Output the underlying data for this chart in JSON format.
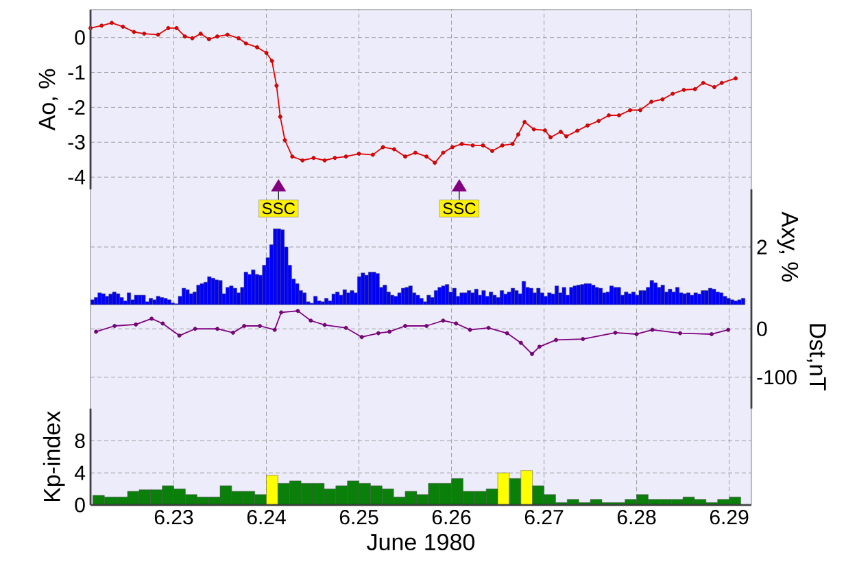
{
  "chart_data": [
    {
      "type": "line",
      "ylabel": "Ao, %",
      "xlim": [
        6.221,
        6.2924
      ],
      "ylim": [
        -4.35,
        0.8
      ],
      "xticks": [
        6.23,
        6.24,
        6.25,
        6.26,
        6.27,
        6.28,
        6.29
      ],
      "yticks": [
        0,
        -1,
        -2,
        -3,
        -4
      ],
      "grid": true,
      "marker": "circle",
      "tick_labels": "y",
      "x": [
        6.221,
        6.2222,
        6.2233,
        6.2245,
        6.2257,
        6.2268,
        6.2283,
        6.2294,
        6.2303,
        6.2312,
        6.232,
        6.2329,
        6.2338,
        6.2347,
        6.2358,
        6.237,
        6.2378,
        6.239,
        6.24,
        6.2406,
        6.2411,
        6.2415,
        6.242,
        6.2428,
        6.2439,
        6.2451,
        6.2463,
        6.2474,
        6.2486,
        6.25,
        6.2515,
        6.2526,
        6.2538,
        6.255,
        6.2561,
        6.2573,
        6.2582,
        6.2591,
        6.2601,
        6.2611,
        6.2623,
        6.2634,
        6.2644,
        6.2655,
        6.2666,
        6.2672,
        6.2679,
        6.2689,
        6.2701,
        6.2707,
        6.2718,
        6.2724,
        6.2736,
        6.2747,
        6.2759,
        6.277,
        6.2781,
        6.2793,
        6.2804,
        6.2816,
        6.2828,
        6.2839,
        6.2851,
        6.2863,
        6.2872,
        6.2884,
        6.2892,
        6.2907
      ],
      "series": [
        {
          "color": "#e60000",
          "values": [
            0.27,
            0.34,
            0.42,
            0.31,
            0.16,
            0.11,
            0.08,
            0.27,
            0.27,
            0.03,
            -0.02,
            0.11,
            -0.05,
            0.03,
            0.08,
            -0.02,
            -0.17,
            -0.28,
            -0.44,
            -0.67,
            -1.38,
            -2.27,
            -2.94,
            -3.41,
            -3.52,
            -3.45,
            -3.52,
            -3.45,
            -3.41,
            -3.33,
            -3.36,
            -3.14,
            -3.2,
            -3.41,
            -3.3,
            -3.41,
            -3.59,
            -3.3,
            -3.14,
            -3.05,
            -3.09,
            -3.09,
            -3.25,
            -3.09,
            -3.05,
            -2.78,
            -2.42,
            -2.63,
            -2.66,
            -2.86,
            -2.7,
            -2.83,
            -2.67,
            -2.52,
            -2.39,
            -2.23,
            -2.23,
            -2.08,
            -2.08,
            -1.84,
            -1.77,
            -1.61,
            -1.5,
            -1.48,
            -1.3,
            -1.42,
            -1.3,
            -1.17
          ]
        }
      ],
      "annotations": [
        "SSC",
        "SSC"
      ]
    },
    {
      "type": "bar",
      "ylabel": "Axy, %",
      "xlim": [
        6.221,
        6.2924
      ],
      "ylim": [
        0,
        4
      ],
      "xticks": [
        6.23,
        6.24,
        6.25,
        6.26,
        6.27,
        6.28,
        6.29
      ],
      "yticks": [
        2
      ],
      "grid": true,
      "tick_labels": "y",
      "color": "#0000ff",
      "x": [
        6.2212,
        6.2216,
        6.22199,
        6.22239,
        6.22278,
        6.22318,
        6.22357,
        6.22397,
        6.22436,
        6.22476,
        6.22515,
        6.22555,
        6.22594,
        6.22634,
        6.22673,
        6.22713,
        6.22752,
        6.22792,
        6.22831,
        6.22871,
        6.2291,
        6.2295,
        6.22989,
        6.23029,
        6.23068,
        6.23108,
        6.23147,
        6.23187,
        6.23226,
        6.23266,
        6.23305,
        6.23345,
        6.23384,
        6.23424,
        6.23463,
        6.23503,
        6.23542,
        6.23582,
        6.23621,
        6.23661,
        6.237,
        6.2374,
        6.23779,
        6.23819,
        6.23858,
        6.23898,
        6.23937,
        6.23977,
        6.24016,
        6.24056,
        6.24095,
        6.24135,
        6.24174,
        6.24214,
        6.24253,
        6.24293,
        6.24332,
        6.24372,
        6.24411,
        6.24451,
        6.2449,
        6.2453,
        6.24569,
        6.24609,
        6.24648,
        6.24688,
        6.24727,
        6.24767,
        6.24806,
        6.24846,
        6.24885,
        6.24925,
        6.24964,
        6.25004,
        6.25043,
        6.25083,
        6.25122,
        6.25162,
        6.25201,
        6.25241,
        6.2528,
        6.2532,
        6.25359,
        6.25399,
        6.25438,
        6.25478,
        6.25517,
        6.25557,
        6.25596,
        6.25636,
        6.25675,
        6.25715,
        6.25754,
        6.25794,
        6.25833,
        6.25873,
        6.25912,
        6.25952,
        6.25991,
        6.26031,
        6.2607,
        6.2611,
        6.26149,
        6.26189,
        6.26228,
        6.26268,
        6.26307,
        6.26347,
        6.26386,
        6.26426,
        6.26465,
        6.26505,
        6.26544,
        6.26584,
        6.26623,
        6.26663,
        6.26702,
        6.26742,
        6.26781,
        6.26821,
        6.2686,
        6.269,
        6.26939,
        6.26979,
        6.27018,
        6.27058,
        6.27097,
        6.27137,
        6.27176,
        6.27216,
        6.27255,
        6.27295,
        6.27334,
        6.27374,
        6.27413,
        6.27453,
        6.27492,
        6.27532,
        6.27571,
        6.27611,
        6.2765,
        6.2769,
        6.27729,
        6.27769,
        6.27808,
        6.27848,
        6.27887,
        6.27927,
        6.27966,
        6.28006,
        6.28045,
        6.28085,
        6.28124,
        6.28164,
        6.28203,
        6.28243,
        6.28282,
        6.28322,
        6.28361,
        6.28401,
        6.2844,
        6.2848,
        6.28519,
        6.28559,
        6.28598,
        6.28638,
        6.28677,
        6.28717,
        6.28756,
        6.28796,
        6.28835,
        6.28875,
        6.28914,
        6.28954,
        6.28993,
        6.29033,
        6.29072,
        6.29112,
        6.29151
      ],
      "values": [
        0.17,
        0.25,
        0.41,
        0.38,
        0.29,
        0.37,
        0.44,
        0.38,
        0.25,
        0.13,
        0.41,
        0.17,
        0.33,
        0.33,
        0.33,
        0.1,
        0.22,
        0.17,
        0.29,
        0.25,
        0.22,
        0.17,
        0.06,
        0.03,
        0.29,
        0.57,
        0.52,
        0.38,
        0.44,
        0.68,
        0.73,
        0.78,
        0.97,
        0.92,
        0.86,
        0.84,
        0.38,
        0.6,
        0.65,
        0.57,
        0.41,
        0.6,
        1.13,
        1.05,
        1.21,
        1.05,
        1.02,
        1.37,
        1.63,
        2.08,
        2.63,
        2.63,
        2.6,
        2.0,
        1.37,
        0.89,
        0.73,
        0.49,
        0.41,
        0.1,
        0.05,
        0.29,
        0.13,
        0.1,
        0.22,
        0.13,
        0.37,
        0.44,
        0.33,
        0.52,
        0.41,
        0.49,
        0.41,
        0.97,
        1.1,
        1.02,
        1.13,
        1.13,
        1.08,
        0.6,
        0.68,
        0.44,
        0.33,
        0.29,
        0.41,
        0.57,
        0.6,
        0.65,
        0.41,
        0.33,
        0.22,
        0.1,
        0.33,
        0.25,
        0.49,
        0.6,
        0.65,
        0.7,
        0.44,
        0.57,
        0.29,
        0.41,
        0.41,
        0.49,
        0.41,
        0.54,
        0.33,
        0.49,
        0.29,
        0.44,
        0.33,
        0.25,
        0.49,
        0.37,
        0.44,
        0.57,
        0.49,
        0.38,
        0.81,
        0.6,
        0.57,
        0.41,
        0.57,
        0.41,
        0.29,
        0.41,
        0.37,
        0.65,
        0.41,
        0.6,
        0.33,
        0.6,
        0.65,
        0.68,
        0.7,
        0.73,
        0.73,
        0.68,
        0.6,
        0.57,
        0.41,
        0.44,
        0.65,
        0.6,
        0.6,
        0.33,
        0.44,
        0.38,
        0.44,
        0.33,
        0.49,
        0.49,
        0.6,
        0.84,
        0.76,
        0.6,
        0.68,
        0.44,
        0.54,
        0.44,
        0.6,
        0.41,
        0.38,
        0.41,
        0.33,
        0.41,
        0.37,
        0.49,
        0.49,
        0.57,
        0.54,
        0.44,
        0.41,
        0.29,
        0.22,
        0.17,
        0.13,
        0.17,
        0.22
      ]
    },
    {
      "type": "line",
      "ylabel": "Dst,nT",
      "xlim": [
        6.221,
        6.2924
      ],
      "ylim": [
        -165,
        50
      ],
      "xticks": [
        6.23,
        6.24,
        6.25,
        6.26,
        6.27,
        6.28,
        6.29
      ],
      "yticks": [
        0,
        -100
      ],
      "grid": true,
      "marker": "circle",
      "tick_labels": "y",
      "x": [
        6.2216,
        6.2236,
        6.2259,
        6.2276,
        6.2288,
        6.2306,
        6.2323,
        6.2347,
        6.2364,
        6.2376,
        6.2393,
        6.2409,
        6.2416,
        6.2434,
        6.2448,
        6.2463,
        6.2486,
        6.2503,
        6.2521,
        6.2533,
        6.255,
        6.2573,
        6.2591,
        6.2605,
        6.262,
        6.264,
        6.266,
        6.2675,
        6.2687,
        6.2695,
        6.2713,
        6.2742,
        6.2777,
        6.28,
        6.2817,
        6.2847,
        6.2881,
        6.2899
      ],
      "series": [
        {
          "color": "#800080",
          "values": [
            -6,
            6,
            9,
            21,
            11,
            -14,
            0,
            0,
            -8,
            6,
            6,
            -2,
            34,
            37,
            17,
            8,
            2,
            -17,
            -9,
            -6,
            6,
            6,
            17,
            11,
            -2,
            2,
            -9,
            -29,
            -52,
            -37,
            -23,
            -21,
            -8,
            -11,
            -2,
            -9,
            -11,
            -2
          ]
        }
      ]
    },
    {
      "type": "bar",
      "ylabel": "Kp-index",
      "xlabel": "June 1980",
      "xlim": [
        6.221,
        6.2924
      ],
      "ylim": [
        0,
        12
      ],
      "xticks": [
        6.23,
        6.24,
        6.25,
        6.26,
        6.27,
        6.28,
        6.29
      ],
      "yticks": [
        0,
        4,
        8
      ],
      "grid": true,
      "x": [
        6.221875,
        6.223125,
        6.224375,
        6.225625,
        6.226875,
        6.228125,
        6.229375,
        6.230625,
        6.231875,
        6.233125,
        6.234375,
        6.235625,
        6.236875,
        6.238125,
        6.239375,
        6.240625,
        6.241875,
        6.243125,
        6.244375,
        6.245625,
        6.246875,
        6.248125,
        6.249375,
        6.250625,
        6.251875,
        6.253125,
        6.254375,
        6.255625,
        6.256875,
        6.258125,
        6.259375,
        6.260625,
        6.261875,
        6.263125,
        6.264375,
        6.265625,
        6.266875,
        6.268125,
        6.269375,
        6.270625,
        6.271875,
        6.273125,
        6.274375,
        6.275625,
        6.276875,
        6.278125,
        6.279375,
        6.280625,
        6.281875,
        6.283125,
        6.284375,
        6.285625,
        6.286875,
        6.288125,
        6.289375,
        6.290625
      ],
      "values": [
        1.2,
        1.0,
        1.0,
        1.7,
        1.9,
        1.9,
        2.4,
        2.0,
        1.3,
        1.0,
        1.0,
        2.4,
        1.7,
        1.7,
        1.3,
        3.7,
        2.7,
        3.0,
        2.7,
        2.7,
        2.0,
        2.4,
        3.0,
        2.7,
        2.4,
        2.0,
        1.0,
        1.7,
        1.3,
        2.7,
        2.7,
        3.3,
        1.7,
        1.7,
        2.0,
        4.0,
        3.3,
        4.3,
        2.4,
        1.3,
        0.3,
        0.7,
        0.3,
        0.7,
        0.3,
        0.3,
        0.7,
        1.3,
        0.7,
        0.7,
        0.7,
        1.0,
        0.7,
        0.3,
        0.7,
        1.0
      ],
      "colors": [
        "#0a800a",
        "#0a800a",
        "#0a800a",
        "#0a800a",
        "#0a800a",
        "#0a800a",
        "#0a800a",
        "#0a800a",
        "#0a800a",
        "#0a800a",
        "#0a800a",
        "#0a800a",
        "#0a800a",
        "#0a800a",
        "#0a800a",
        "#ffff00",
        "#0a800a",
        "#0a800a",
        "#0a800a",
        "#0a800a",
        "#0a800a",
        "#0a800a",
        "#0a800a",
        "#0a800a",
        "#0a800a",
        "#0a800a",
        "#0a800a",
        "#0a800a",
        "#0a800a",
        "#0a800a",
        "#0a800a",
        "#0a800a",
        "#0a800a",
        "#0a800a",
        "#0a800a",
        "#ffff00",
        "#0a800a",
        "#ffff00",
        "#0a800a",
        "#0a800a",
        "#0a800a",
        "#0a800a",
        "#0a800a",
        "#0a800a",
        "#0a800a",
        "#0a800a",
        "#0a800a",
        "#0a800a",
        "#0a800a",
        "#0a800a",
        "#0a800a",
        "#0a800a",
        "#0a800a",
        "#0a800a",
        "#0a800a",
        "#0a800a"
      ]
    }
  ]
}
